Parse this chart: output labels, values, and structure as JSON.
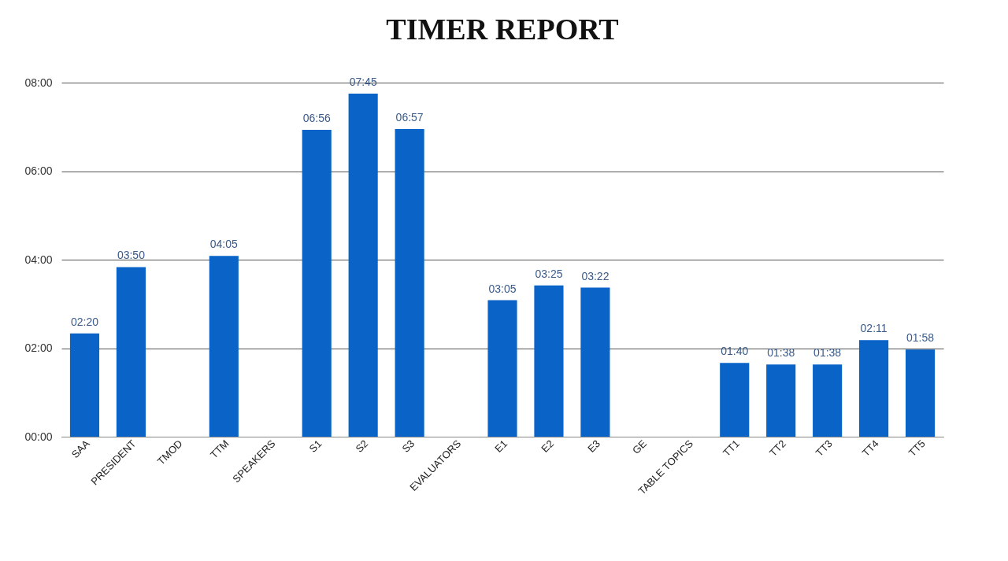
{
  "chart_data": {
    "type": "bar",
    "title": "TIMER REPORT",
    "categories": [
      "SAA",
      "PRESIDENT",
      "TMOD",
      "TTM",
      "SPEAKERS",
      "S1",
      "S2",
      "S3",
      "EVALUATORS",
      "E1",
      "E2",
      "E3",
      "GE",
      "TABLE TOPICS",
      "TT1",
      "TT2",
      "TT3",
      "TT4",
      "TT5"
    ],
    "values": [
      2.333,
      3.833,
      null,
      4.083,
      null,
      6.933,
      7.75,
      6.95,
      null,
      3.083,
      3.417,
      3.367,
      null,
      null,
      1.667,
      1.633,
      1.633,
      2.183,
      1.967
    ],
    "value_labels": [
      "02:20",
      "03:50",
      null,
      "04:05",
      null,
      "06:56",
      "07:45",
      "06:57",
      null,
      "03:05",
      "03:25",
      "03:22",
      null,
      null,
      "01:40",
      "01:38",
      "01:38",
      "02:11",
      "01:58"
    ],
    "color": "#0a64c8",
    "ylim": [
      0,
      8
    ],
    "yticks": [
      {
        "value": 0,
        "label": "00:00"
      },
      {
        "value": 2,
        "label": "02:00"
      },
      {
        "value": 4,
        "label": "04:00"
      },
      {
        "value": 6,
        "label": "06:00"
      },
      {
        "value": 8,
        "label": "08:00"
      }
    ],
    "grid": "y"
  }
}
